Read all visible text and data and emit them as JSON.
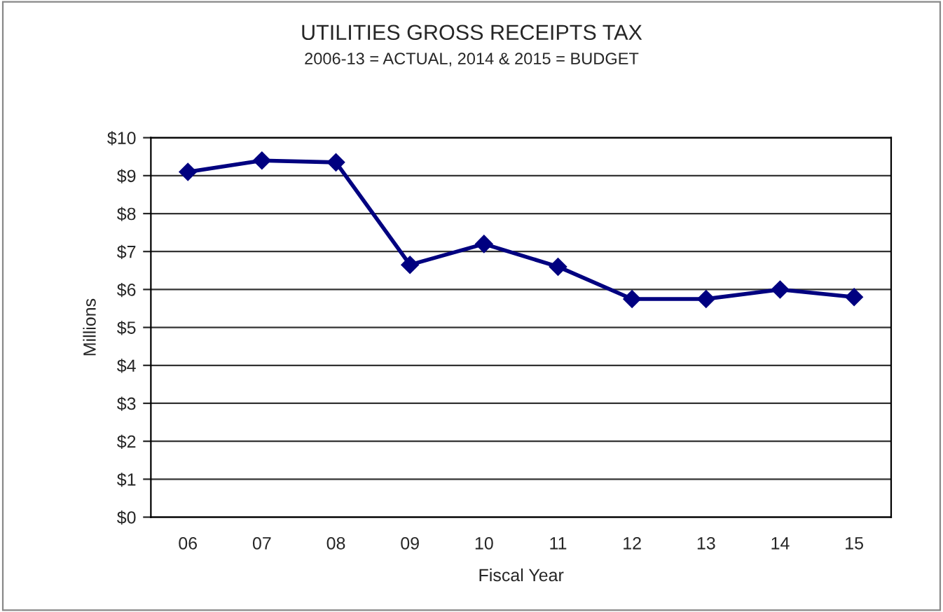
{
  "chart_data": {
    "type": "line",
    "title": "UTILITIES GROSS RECEIPTS TAX",
    "subtitle": "2006-13 = ACTUAL, 2014 & 2015 = BUDGET",
    "xlabel": "Fiscal Year",
    "ylabel": "Millions",
    "categories": [
      "06",
      "07",
      "08",
      "09",
      "10",
      "11",
      "12",
      "13",
      "14",
      "15"
    ],
    "series": [
      {
        "color": "#000080",
        "values": [
          9.1,
          9.4,
          9.35,
          6.65,
          7.2,
          6.6,
          5.75,
          5.75,
          6.0,
          5.8
        ]
      }
    ],
    "ylim": [
      0,
      10
    ],
    "yticks": [
      {
        "value": 0,
        "label": "$0"
      },
      {
        "value": 1,
        "label": "$1"
      },
      {
        "value": 2,
        "label": "$2"
      },
      {
        "value": 3,
        "label": "$3"
      },
      {
        "value": 4,
        "label": "$4"
      },
      {
        "value": 5,
        "label": "$5"
      },
      {
        "value": 6,
        "label": "$6"
      },
      {
        "value": 7,
        "label": "$7"
      },
      {
        "value": 8,
        "label": "$8"
      },
      {
        "value": 9,
        "label": "$9"
      },
      {
        "value": 10,
        "label": "$10"
      }
    ],
    "grid": "y",
    "marker": "diamond",
    "line_style": "solid",
    "legend": false
  }
}
